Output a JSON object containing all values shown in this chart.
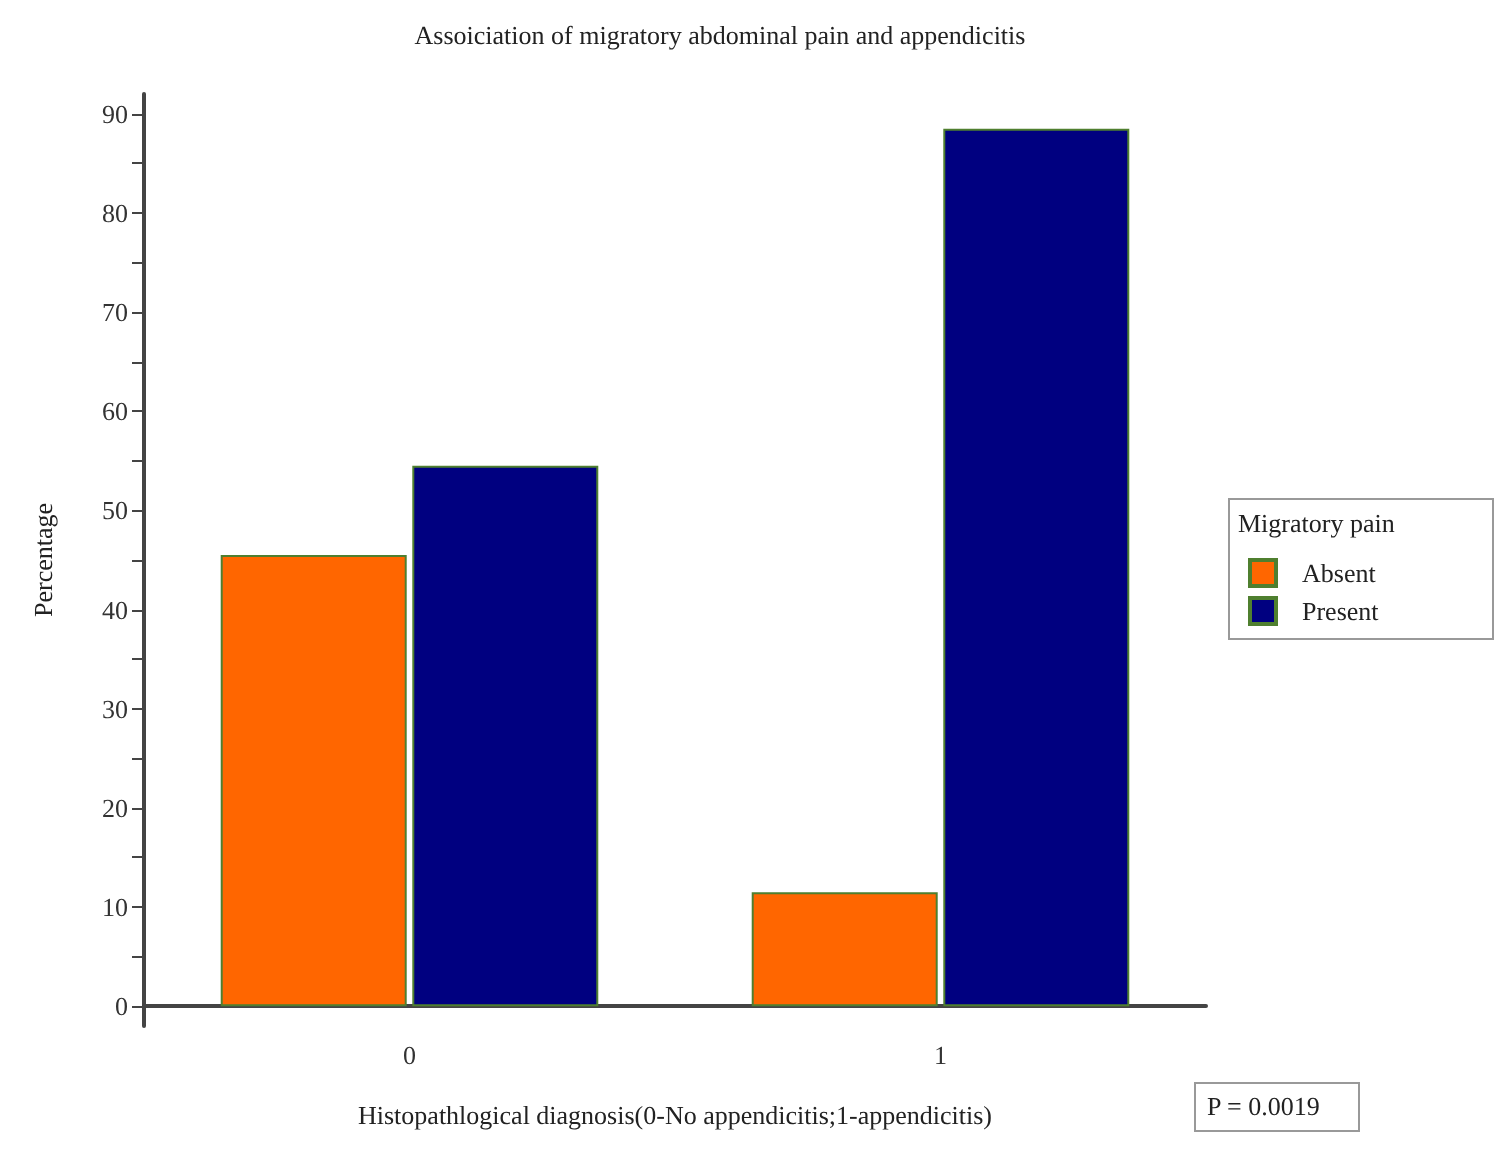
{
  "chart_data": {
    "type": "bar",
    "title": "Assoiciation of migratory abdominal pain and appendicitis",
    "xlabel": "Histopathlogical diagnosis(0-No appendicitis;1-appendicitis)",
    "ylabel": "Percentage",
    "legend_title": "Migratory pain",
    "categories": [
      "0",
      "1"
    ],
    "series": [
      {
        "name": "Absent",
        "color": "#ff6600",
        "values": [
          45.5,
          11.5
        ]
      },
      {
        "name": "Present",
        "color": "#000080",
        "values": [
          54.5,
          88.5
        ]
      }
    ],
    "ylim": [
      -2,
      92
    ],
    "yticks": [
      0,
      {
        "value": 5,
        "label": null
      },
      10,
      {
        "value": 15,
        "label": null
      },
      20,
      {
        "value": 25,
        "label": null
      },
      30,
      {
        "value": 35,
        "label": null
      },
      40,
      {
        "value": 45,
        "label": null
      },
      50,
      {
        "value": 55,
        "label": null
      },
      60,
      {
        "value": 65,
        "label": null
      },
      70,
      {
        "value": 75,
        "label": null
      },
      80,
      {
        "value": 85,
        "label": null
      },
      90
    ],
    "grid": false,
    "legend": "right",
    "annotations": [
      "P = 0.0019"
    ]
  }
}
